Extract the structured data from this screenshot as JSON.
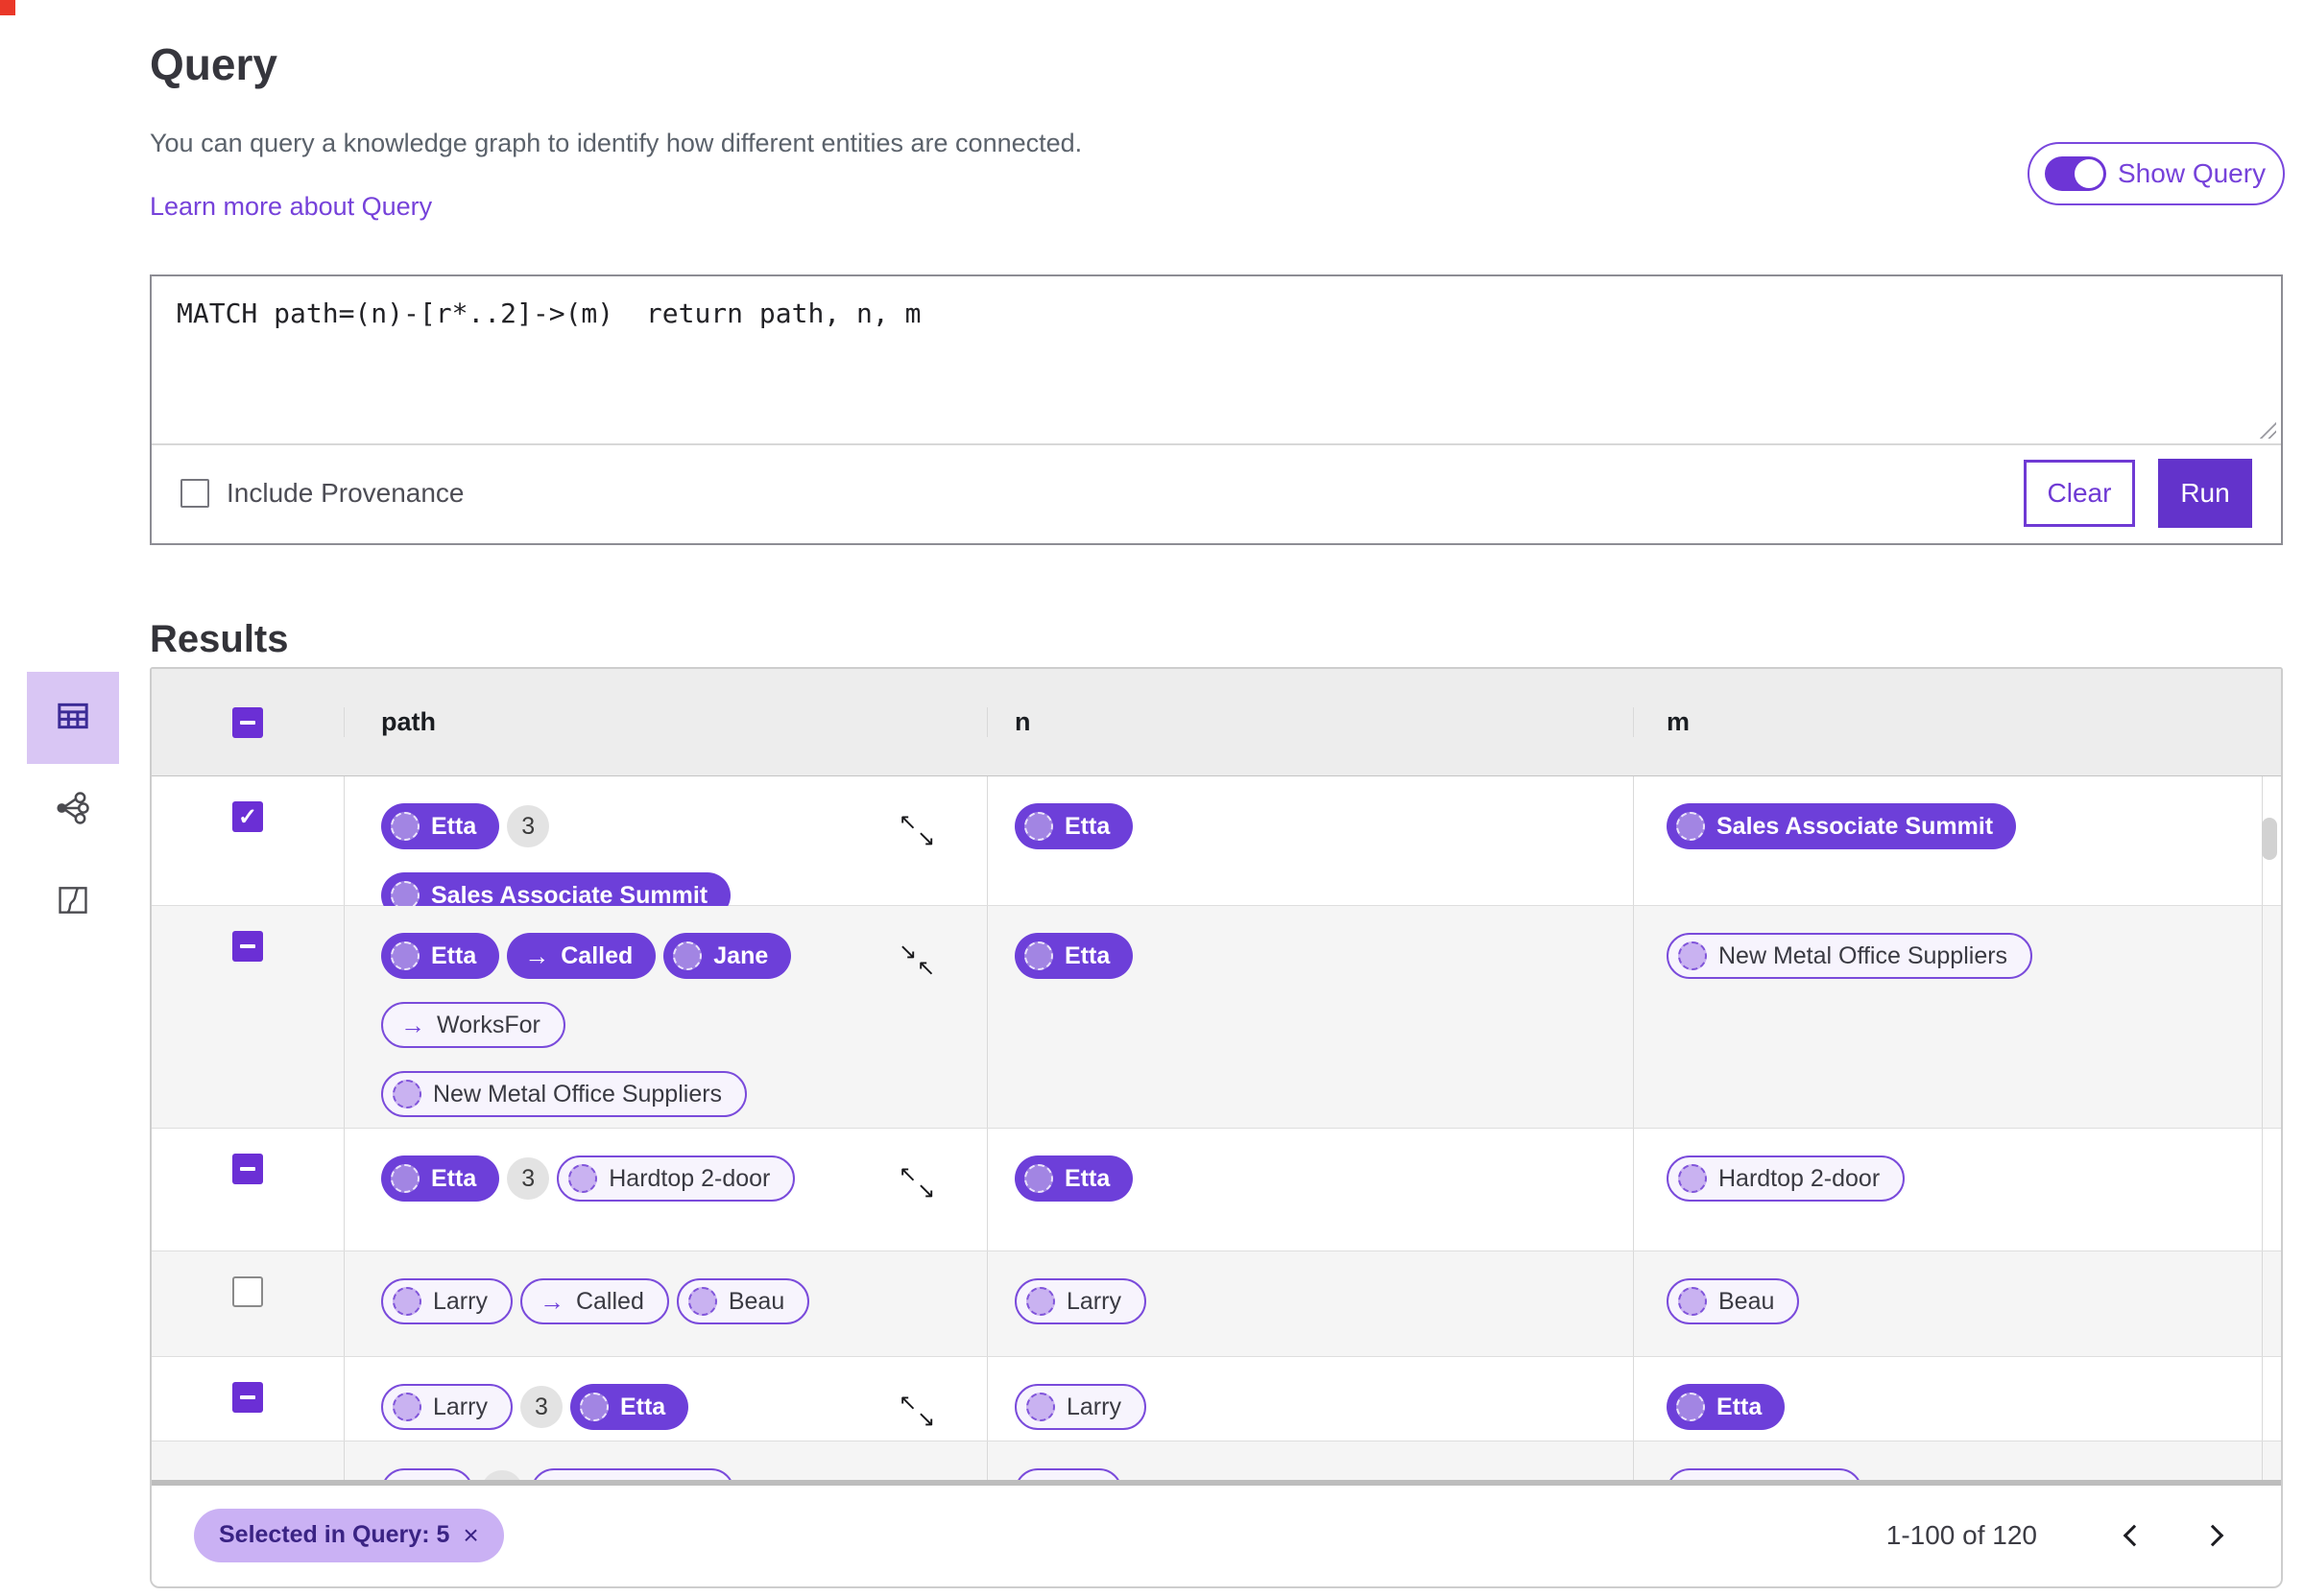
{
  "page": {
    "title": "Query",
    "description": "You can query a knowledge graph to identify how different entities are connected.",
    "learn_more": "Learn more about Query"
  },
  "show_query": {
    "label": "Show Query",
    "on": true
  },
  "editor": {
    "query": "MATCH path=(n)-[r*..2]->(m)  return path, n, m",
    "provenance_label": "Include Provenance",
    "provenance_checked": false,
    "clear": "Clear",
    "run": "Run"
  },
  "results": {
    "title": "Results",
    "selected_view": "table",
    "views": [
      {
        "id": "table",
        "icon": "table-icon"
      },
      {
        "id": "graph",
        "icon": "graph-icon"
      },
      {
        "id": "map",
        "icon": "map-icon"
      }
    ],
    "table": {
      "select_all": "indeterminate",
      "columns": [
        "path",
        "n",
        "m"
      ],
      "rows": [
        {
          "checkbox": "checked",
          "overflow": "expand",
          "path": [
            {
              "kind": "node",
              "label": "Etta",
              "variant": "filled"
            },
            {
              "kind": "count",
              "label": "3"
            },
            {
              "kind": "break"
            },
            {
              "kind": "node",
              "label": "Sales Associate Summit",
              "variant": "filled"
            }
          ],
          "n": [
            {
              "kind": "node",
              "label": "Etta",
              "variant": "filled"
            }
          ],
          "m": [
            {
              "kind": "node",
              "label": "Sales Associate Summit",
              "variant": "filled"
            }
          ]
        },
        {
          "checkbox": "indeterminate",
          "overflow": "collapse",
          "path": [
            {
              "kind": "node",
              "label": "Etta",
              "variant": "filled"
            },
            {
              "kind": "rel",
              "label": "Called",
              "variant": "filled"
            },
            {
              "kind": "node",
              "label": "Jane",
              "variant": "filled"
            },
            {
              "kind": "break"
            },
            {
              "kind": "rel",
              "label": "WorksFor",
              "variant": "outlined"
            },
            {
              "kind": "break"
            },
            {
              "kind": "node",
              "label": "New Metal Office Suppliers",
              "variant": "outlined"
            }
          ],
          "n": [
            {
              "kind": "node",
              "label": "Etta",
              "variant": "filled"
            }
          ],
          "m": [
            {
              "kind": "node",
              "label": "New Metal Office Suppliers",
              "variant": "outlined"
            }
          ]
        },
        {
          "checkbox": "indeterminate",
          "overflow": "expand",
          "path": [
            {
              "kind": "node",
              "label": "Etta",
              "variant": "filled"
            },
            {
              "kind": "count",
              "label": "3"
            },
            {
              "kind": "node",
              "label": "Hardtop 2-door",
              "variant": "outlined"
            }
          ],
          "n": [
            {
              "kind": "node",
              "label": "Etta",
              "variant": "filled"
            }
          ],
          "m": [
            {
              "kind": "node",
              "label": "Hardtop 2-door",
              "variant": "outlined"
            }
          ]
        },
        {
          "checkbox": "unchecked",
          "overflow": null,
          "path": [
            {
              "kind": "node",
              "label": "Larry",
              "variant": "outlined"
            },
            {
              "kind": "rel",
              "label": "Called",
              "variant": "outlined"
            },
            {
              "kind": "node",
              "label": "Beau",
              "variant": "outlined"
            }
          ],
          "n": [
            {
              "kind": "node",
              "label": "Larry",
              "variant": "outlined"
            }
          ],
          "m": [
            {
              "kind": "node",
              "label": "Beau",
              "variant": "outlined"
            }
          ]
        },
        {
          "checkbox": "indeterminate",
          "overflow": "expand",
          "path": [
            {
              "kind": "node",
              "label": "Larry",
              "variant": "outlined"
            },
            {
              "kind": "count",
              "label": "3"
            },
            {
              "kind": "node",
              "label": "Etta",
              "variant": "filled"
            }
          ],
          "n": [
            {
              "kind": "node",
              "label": "Larry",
              "variant": "outlined"
            }
          ],
          "m": [
            {
              "kind": "node",
              "label": "Etta",
              "variant": "filled"
            }
          ]
        }
      ]
    },
    "footer": {
      "selected_chip": "Selected in Query: 5",
      "chip_close": "×",
      "range": "1-100 of 120"
    }
  },
  "icons": {
    "rel_arrow": "→",
    "expand_a": "↖",
    "expand_b": "↘"
  },
  "colors": {
    "accent": "#6d3fd9",
    "run_button": "#6333cb",
    "chip_bg": "#cab1f4",
    "selected_tile_bg": "#d9c6f4",
    "row_alt_bg": "#f5f5f5",
    "header_bg": "#ededed"
  }
}
